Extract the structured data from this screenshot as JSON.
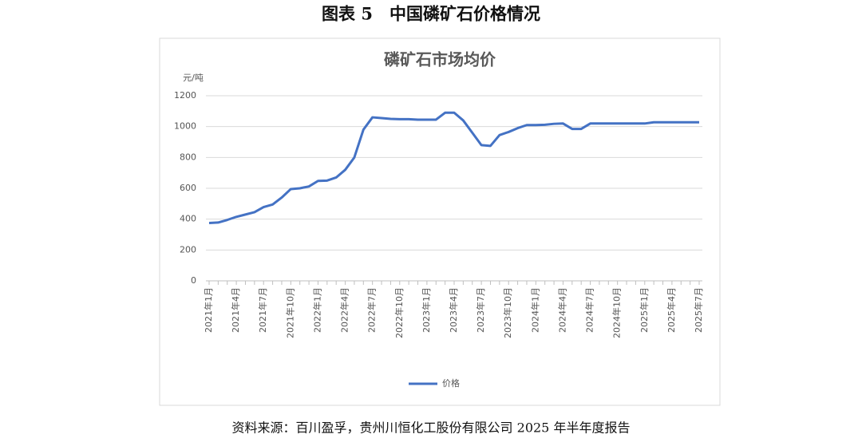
{
  "figure_title": "图表 5　中国磷矿石价格情况",
  "source": "资料来源：百川盈孚，贵州川恒化工股份有限公司 2025 年半年度报告",
  "chart_data": {
    "type": "line",
    "title": "磷矿石市场均价",
    "y_unit": "元/吨",
    "categories": [
      "2021年1月",
      null,
      null,
      "2021年4月",
      null,
      null,
      "2021年7月",
      null,
      null,
      "2021年10月",
      null,
      null,
      "2022年1月",
      null,
      null,
      "2022年4月",
      null,
      null,
      "2022年7月",
      null,
      null,
      "2022年10月",
      null,
      null,
      "2023年1月",
      null,
      null,
      "2023年4月",
      null,
      null,
      "2023年7月",
      null,
      null,
      "2023年10月",
      null,
      null,
      "2024年1月",
      null,
      null,
      "2024年4月",
      null,
      null,
      "2024年7月",
      null,
      null,
      "2024年10月",
      null,
      null,
      "2025年1月",
      null,
      null,
      "2025年4月",
      null,
      null,
      "2025年7月"
    ],
    "series": [
      {
        "name": "价格",
        "color": "#4472c4",
        "values": [
          375,
          378,
          395,
          415,
          430,
          445,
          478,
          495,
          540,
          595,
          600,
          612,
          648,
          650,
          670,
          720,
          800,
          980,
          1060,
          1055,
          1050,
          1048,
          1048,
          1045,
          1045,
          1045,
          1090,
          1090,
          1040,
          960,
          880,
          875,
          945,
          965,
          990,
          1010,
          1010,
          1012,
          1018,
          1020,
          985,
          985,
          1020,
          1020,
          1020,
          1020,
          1020,
          1020,
          1020,
          1028,
          1028,
          1028,
          1028,
          1028,
          1028
        ]
      }
    ],
    "ylim": [
      0,
      1200
    ],
    "yticks": [
      0,
      200,
      400,
      600,
      800,
      1000,
      1200
    ],
    "grid": true
  }
}
